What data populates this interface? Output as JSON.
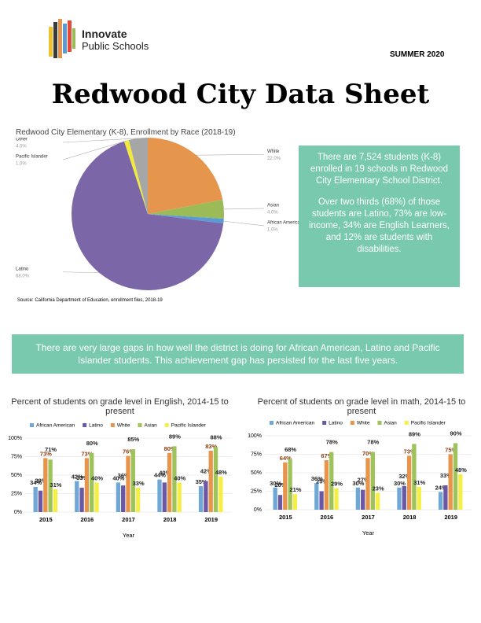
{
  "header": {
    "logo_line1": "Innovate",
    "logo_line2": "Public Schools",
    "date": "SUMMER 2020",
    "title": "Redwood City Data Sheet"
  },
  "callout": {
    "paragraphs": [
      "There are 7,524 students (K-8) enrolled in 19 schools in Redwood City Elementary School District.",
      "Over two thirds (68%) of those students are Latino, 73% are low-income, 34% are English Learners, and 12% are students with disabilities."
    ]
  },
  "banner": "There are very large gaps in how well the district is doing for African American, Latino and Pacific Islander students. This achievement gap has persisted for the last five years.",
  "chart_data": [
    {
      "type": "pie",
      "title": "Redwood City Elementary (K-8), Enrollment by Race (2018-19)",
      "categories": [
        "White",
        "Asian",
        "African American",
        "Latino",
        "Pacific Islander",
        "Other"
      ],
      "values": [
        22,
        4,
        1,
        68,
        1,
        4
      ],
      "value_labels": [
        "22.0%",
        "4.0%",
        "1.0%",
        "68.0%",
        "1.0%",
        "4.0%"
      ],
      "colors": [
        "#e5964c",
        "#9bbb59",
        "#5b9bd5",
        "#7b66a8",
        "#f3e83e",
        "#a6a6a6"
      ],
      "source": "Source: California Department of Education, enrollment files, 2018-19"
    },
    {
      "type": "bar",
      "title": "Percent of students on grade level in English, 2014-15 to present",
      "x_label": "Year",
      "categories": [
        "2015",
        "2016",
        "2017",
        "2018",
        "2019"
      ],
      "ylim": [
        0,
        100
      ],
      "yticks": [
        {
          "value": 0,
          "label": "0%"
        },
        {
          "value": 25,
          "label": "25%"
        },
        {
          "value": 50,
          "label": "50%"
        },
        {
          "value": 75,
          "label": "75%"
        },
        {
          "value": 100,
          "label": "100%"
        }
      ],
      "series": [
        {
          "name": "African American",
          "color": "#6fa8d6",
          "values": [
            34,
            42,
            40,
            44,
            35
          ],
          "value_labels": [
            "34%",
            "42%",
            "40%",
            "44%",
            "35%"
          ]
        },
        {
          "name": "Latino",
          "color": "#6a58a4",
          "values": [
            29,
            33,
            36,
            40,
            42
          ],
          "value_labels": [
            "29%",
            "33%",
            "36%",
            "40%",
            "42%"
          ]
        },
        {
          "name": "White",
          "color": "#e8944a",
          "values": [
            73,
            73,
            76,
            80,
            83
          ],
          "value_labels": [
            "73%",
            "73%",
            "76%",
            "80%",
            "83%"
          ]
        },
        {
          "name": "Asian",
          "color": "#9dc35a",
          "values": [
            71,
            80,
            85,
            89,
            88
          ],
          "value_labels": [
            "71%",
            "80%",
            "85%",
            "89%",
            "88%"
          ]
        },
        {
          "name": "Pacific Islander",
          "color": "#f5ef45",
          "values": [
            31,
            40,
            33,
            40,
            48
          ],
          "value_labels": [
            "31%",
            "40%",
            "33%",
            "40%",
            "48%"
          ]
        }
      ]
    },
    {
      "type": "bar",
      "title": "Percent of students on grade level in math, 2014-15 to present",
      "x_label": "Year",
      "categories": [
        "2015",
        "2016",
        "2017",
        "2018",
        "2019"
      ],
      "ylim": [
        0,
        100
      ],
      "yticks": [
        {
          "value": 0,
          "label": "0%"
        },
        {
          "value": 25,
          "label": "25%"
        },
        {
          "value": 50,
          "label": "50%"
        },
        {
          "value": 75,
          "label": "75%"
        },
        {
          "value": 100,
          "label": "100%"
        }
      ],
      "series": [
        {
          "name": "African American",
          "color": "#6fa8d6",
          "values": [
            30,
            36,
            30,
            30,
            24
          ],
          "value_labels": [
            "30%",
            "36%",
            "30%",
            "30%",
            "24%"
          ]
        },
        {
          "name": "Latino",
          "color": "#6a58a4",
          "values": [
            20,
            25,
            27,
            32,
            33
          ],
          "value_labels": [
            "20%",
            "25%",
            "27%",
            "32%",
            "33%"
          ]
        },
        {
          "name": "White",
          "color": "#e8944a",
          "values": [
            64,
            67,
            70,
            73,
            75
          ],
          "value_labels": [
            "64%",
            "67%",
            "70%",
            "73%",
            "75%"
          ]
        },
        {
          "name": "Asian",
          "color": "#9dc35a",
          "values": [
            68,
            78,
            78,
            89,
            90
          ],
          "value_labels": [
            "68%",
            "78%",
            "78%",
            "89%",
            "90%"
          ]
        },
        {
          "name": "Pacific Islander",
          "color": "#f5ef45",
          "values": [
            21,
            29,
            23,
            31,
            48
          ],
          "value_labels": [
            "21%",
            "29%",
            "23%",
            "31%",
            "48%"
          ]
        }
      ]
    }
  ]
}
